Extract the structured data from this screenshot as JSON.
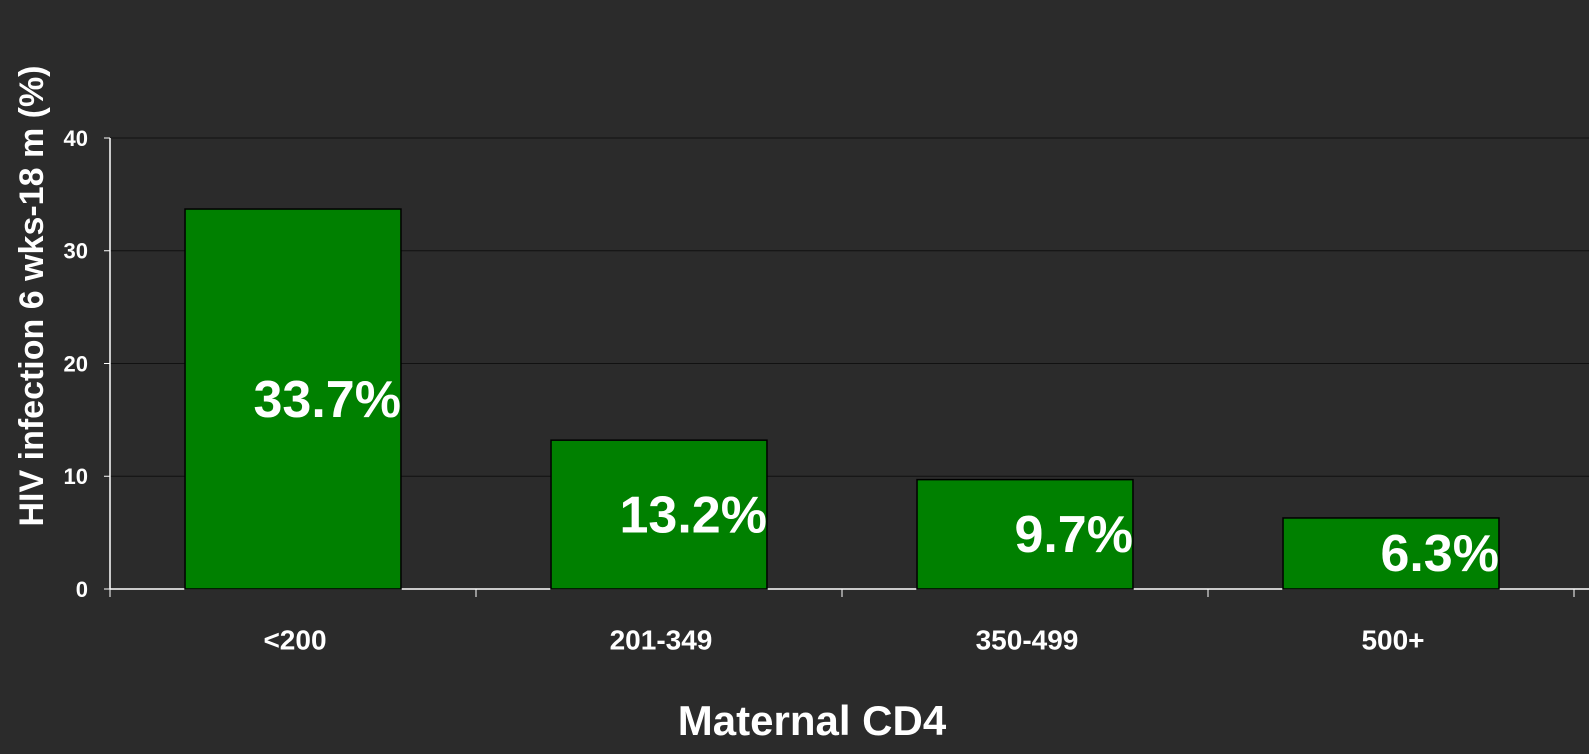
{
  "chart_data": {
    "type": "bar",
    "x_label": "Maternal CD4",
    "y_label": "HIV infection 6 wks-18 m (%)",
    "categories": [
      "<200",
      "201-349",
      "350-499",
      "500+"
    ],
    "values": [
      33.7,
      13.2,
      9.7,
      6.3
    ],
    "value_labels": [
      "33.7%",
      "13.2%",
      "9.7%",
      "6.3%"
    ],
    "color": "#008000",
    "ylim": [
      0,
      40
    ],
    "yticks": [
      0,
      10,
      20,
      30,
      40
    ],
    "grid": true
  }
}
